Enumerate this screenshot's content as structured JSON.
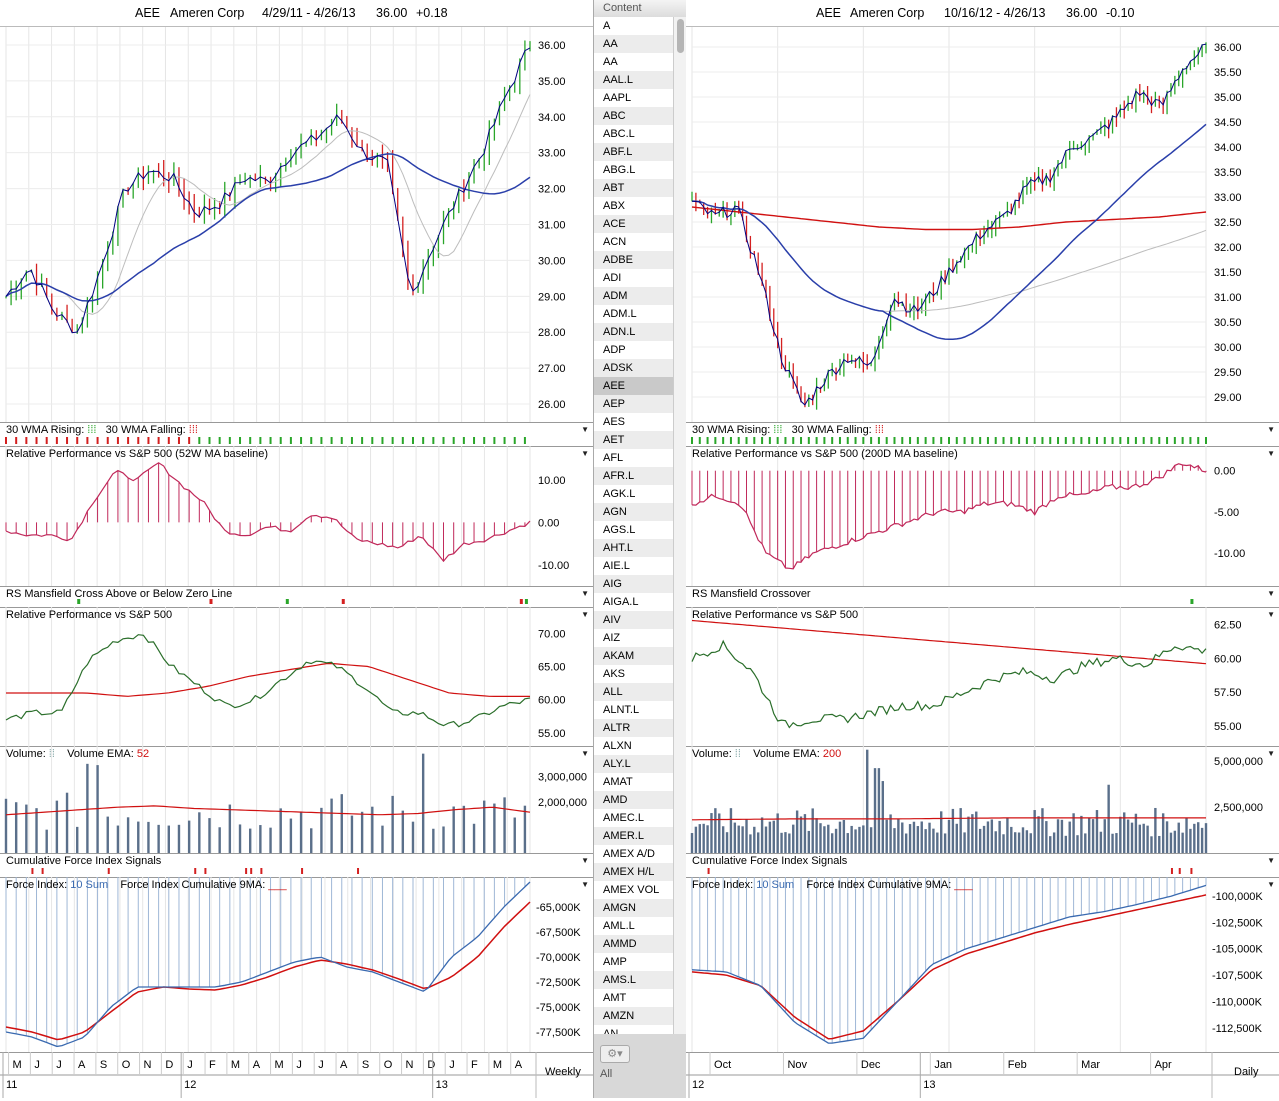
{
  "colors": {
    "up": "#2aa62a",
    "down": "#d42020",
    "sma": "#2a3faa",
    "ema_gray": "#bdbdbd",
    "red": "#d01010",
    "rel": "#c0285a",
    "green": "#2a6e2a",
    "vol": "#5a6f8a",
    "fi": "#3a6ab0"
  },
  "list": {
    "header": "Content",
    "items": [
      "A",
      "AA",
      "AA",
      "AAL.L",
      "AAPL",
      "ABC",
      "ABC.L",
      "ABF.L",
      "ABG.L",
      "ABT",
      "ABX",
      "ACE",
      "ACN",
      "ADBE",
      "ADI",
      "ADM",
      "ADM.L",
      "ADN.L",
      "ADP",
      "ADSK",
      "AEE",
      "AEP",
      "AES",
      "AET",
      "AFL",
      "AFR.L",
      "AGK.L",
      "AGN",
      "AGS.L",
      "AHT.L",
      "AIE.L",
      "AIG",
      "AIGA.L",
      "AIV",
      "AIZ",
      "AKAM",
      "AKS",
      "ALL",
      "ALNT.L",
      "ALTR",
      "ALXN",
      "ALY.L",
      "AMAT",
      "AMD",
      "AMEC.L",
      "AMER.L",
      "AMEX A/D",
      "AMEX H/L",
      "AMEX VOL",
      "AMGN",
      "AML.L",
      "AMMD",
      "AMP",
      "AMS.L",
      "AMT",
      "AMZN",
      "AN"
    ],
    "selected": "AEE",
    "gear": "⚙▾",
    "all_label": "All"
  },
  "left": {
    "header": {
      "ticker": "AEE",
      "name": "Ameren Corp",
      "range": "4/29/11 - 4/26/13",
      "price": "36.00",
      "change": "+0.18"
    },
    "period": "Weekly",
    "price_axis": [
      "36.00",
      "35.00",
      "34.00",
      "33.00",
      "32.00",
      "31.00",
      "30.00",
      "29.00",
      "28.00",
      "27.00",
      "26.00"
    ],
    "wma_rising": "30 WMA Rising:",
    "wma_falling": "30 WMA Falling:",
    "rp_title": "Relative Performance vs S&P 500 (52W MA baseline)",
    "rp_axis": [
      "10.00",
      "0.00",
      "-10.00"
    ],
    "rs_title": "RS Mansfield Cross Above or Below Zero Line",
    "rp2_title": "Relative Performance vs S&P 500",
    "rp2_axis": [
      "70.00",
      "65.00",
      "60.00",
      "55.00"
    ],
    "vol_title": "Volume:",
    "vol_ema": "Volume EMA:",
    "vol_ema_len": "52",
    "vol_axis": [
      "3,000,000",
      "2,000,000"
    ],
    "cfi_title": "Cumulative Force Index Signals",
    "fi_title": "Force Index:",
    "fi_sum": "10 Sum",
    "fi_cum": "Force Index Cumulative 9MA:",
    "fi_axis": [
      "-65,000K",
      "-67,500K",
      "-70,000K",
      "-72,500K",
      "-75,000K",
      "-77,500K"
    ],
    "months": [
      "M",
      "J",
      "J",
      "A",
      "S",
      "O",
      "N",
      "D",
      "J",
      "F",
      "M",
      "A",
      "M",
      "J",
      "J",
      "A",
      "S",
      "O",
      "N",
      "D",
      "J",
      "F",
      "M",
      "A"
    ],
    "years": [
      "11",
      "12",
      "13"
    ]
  },
  "right": {
    "header": {
      "ticker": "AEE",
      "name": "Ameren Corp",
      "range": "10/16/12 - 4/26/13",
      "price": "36.00",
      "change": "-0.10"
    },
    "period": "Daily",
    "price_axis": [
      "36.00",
      "35.50",
      "35.00",
      "34.50",
      "34.00",
      "33.50",
      "33.00",
      "32.50",
      "32.00",
      "31.50",
      "31.00",
      "30.50",
      "30.00",
      "29.50",
      "29.00"
    ],
    "wma_rising": "30 WMA Rising:",
    "wma_falling": "30 WMA Falling:",
    "rp_title": "Relative Performance vs S&P 500 (200D MA baseline)",
    "rp_axis": [
      "0.00",
      "-5.00",
      "-10.00"
    ],
    "rs_title": "RS Mansfield Crossover",
    "rp2_title": "Relative Performance vs S&P 500",
    "rp2_axis": [
      "62.50",
      "60.00",
      "57.50",
      "55.00"
    ],
    "vol_title": "Volume:",
    "vol_ema": "Volume EMA:",
    "vol_ema_len": "200",
    "vol_axis": [
      "5,000,000",
      "2,500,000"
    ],
    "cfi_title": "Cumulative Force Index Signals",
    "fi_title": "Force Index:",
    "fi_sum": "10 Sum",
    "fi_cum": "Force Index Cumulative 9MA:",
    "fi_axis": [
      "-100,000K",
      "-102,500K",
      "-105,000K",
      "-107,500K",
      "-110,000K",
      "-112,500K"
    ],
    "months": [
      "Oct",
      "Nov",
      "Dec",
      "Jan",
      "Feb",
      "Mar",
      "Apr"
    ],
    "years": [
      "12",
      "13"
    ]
  },
  "chart_data": [
    {
      "type": "line",
      "title": "AEE Ameren Corp 4/29/11 - 4/26/13 (Weekly)",
      "x": [
        "2011-05",
        "2011-06",
        "2011-07",
        "2011-08",
        "2011-09",
        "2011-10",
        "2011-11",
        "2011-12",
        "2012-01",
        "2012-02",
        "2012-03",
        "2012-04",
        "2012-05",
        "2012-06",
        "2012-07",
        "2012-08",
        "2012-09",
        "2012-10",
        "2012-11",
        "2012-12",
        "2013-01",
        "2013-02",
        "2013-03",
        "2013-04"
      ],
      "series": [
        {
          "values": [
            29.0,
            29.8,
            28.6,
            28.0,
            30.0,
            32.0,
            32.5,
            32.3,
            32.0,
            31.3,
            31.6,
            32.3,
            32.2,
            33.0,
            33.4,
            34.0,
            33.0,
            32.7,
            29.0,
            30.5,
            31.8,
            33.0,
            34.6,
            36.0
          ]
        }
      ],
      "ylim": [
        25.5,
        36.5
      ]
    },
    {
      "type": "line",
      "title": "AEE Ameren Corp 10/16/12 - 4/26/13 (Daily)",
      "x": [
        "2012-10",
        "2012-11",
        "2012-12",
        "2013-01",
        "2013-02",
        "2013-03",
        "2013-04"
      ],
      "series": [
        {
          "values": [
            32.9,
            29.5,
            29.8,
            31.8,
            33.2,
            34.6,
            36.0
          ]
        }
      ],
      "ylim": [
        28.5,
        36.4
      ]
    }
  ]
}
